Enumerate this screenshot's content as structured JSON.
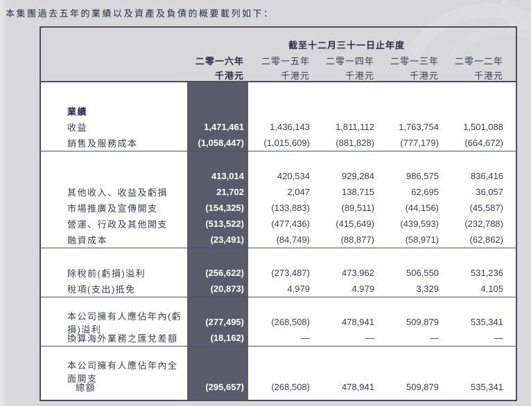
{
  "intro": "本集團過去五年的業績以及資產及負債的概要載列如下：",
  "table": {
    "period_header": "截至十二月三十一日止年度",
    "columns": [
      {
        "year": "二零一六年",
        "unit": "千港元",
        "highlight": true
      },
      {
        "year": "二零一五年",
        "unit": "千港元",
        "highlight": false
      },
      {
        "year": "二零一四年",
        "unit": "千港元",
        "highlight": false
      },
      {
        "year": "二零一三年",
        "unit": "千港元",
        "highlight": false
      },
      {
        "year": "二零一二年",
        "unit": "千港元",
        "highlight": false
      }
    ],
    "rows": [
      {
        "type": "section",
        "label": "業績",
        "bold": true
      },
      {
        "type": "data",
        "label": "收益",
        "values": [
          "1,471,461",
          "1,436,143",
          "1,811,112",
          "1,763,754",
          "1,501,088"
        ]
      },
      {
        "type": "data",
        "label": "銷售及服務成本",
        "values": [
          "(1,058,447)",
          "(1,015,609)",
          "(881,828)",
          "(777,179)",
          "(664,672)"
        ]
      },
      {
        "type": "divider"
      },
      {
        "type": "data",
        "label": "",
        "values": [
          "413,014",
          "420,534",
          "929,284",
          "986,575",
          "836,416"
        ]
      },
      {
        "type": "data",
        "label": "其他收入、收益及虧損",
        "values": [
          "21,702",
          "2,047",
          "138,715",
          "62,695",
          "36,057"
        ]
      },
      {
        "type": "data",
        "label": "市場推廣及宣傳開支",
        "values": [
          "(154,325)",
          "(133,883)",
          "(89,511)",
          "(44,156)",
          "(45,587)"
        ]
      },
      {
        "type": "data",
        "label": "營運、行政及其他開支",
        "values": [
          "(513,522)",
          "(477,436)",
          "(415,649)",
          "(439,593)",
          "(232,788)"
        ]
      },
      {
        "type": "data",
        "label": "融資成本",
        "values": [
          "(23,491)",
          "(84,749)",
          "(88,877)",
          "(58,971)",
          "(62,862)"
        ]
      },
      {
        "type": "divider"
      },
      {
        "type": "data",
        "label": "除稅前(虧損)溢利",
        "values": [
          "(256,622)",
          "(273,487)",
          "473,962",
          "506,550",
          "531,236"
        ]
      },
      {
        "type": "data",
        "label": "稅項(支出)抵免",
        "values": [
          "(20,873)",
          "4,979",
          "4,979",
          "3,329",
          "4,105"
        ]
      },
      {
        "type": "divider"
      },
      {
        "type": "data",
        "label": "本公司擁有人應佔年內(虧損)溢利",
        "values": [
          "(277,495)",
          "(268,508)",
          "478,941",
          "509,879",
          "535,341"
        ]
      },
      {
        "type": "data",
        "label": "換算海外業務之匯兌差額",
        "values": [
          "(18,162)",
          "—",
          "—",
          "—",
          "—"
        ]
      },
      {
        "type": "divider"
      },
      {
        "type": "section",
        "label": "本公司擁有人應佔年內全面開支"
      },
      {
        "type": "data",
        "label": "總額",
        "indent": true,
        "values": [
          "(295,657)",
          "(268,508)",
          "478,941",
          "509,879",
          "535,341"
        ]
      }
    ]
  },
  "colors": {
    "page_bg": "#d8d8da",
    "body_bg": "#ffffff",
    "table_border": "#4b4b5e",
    "highlight_bg": "#5a5a6c",
    "highlight_text": "#ffffff",
    "text_primary": "#3d3d52",
    "text_strong": "#2b2b45",
    "divider": "#50506a"
  }
}
